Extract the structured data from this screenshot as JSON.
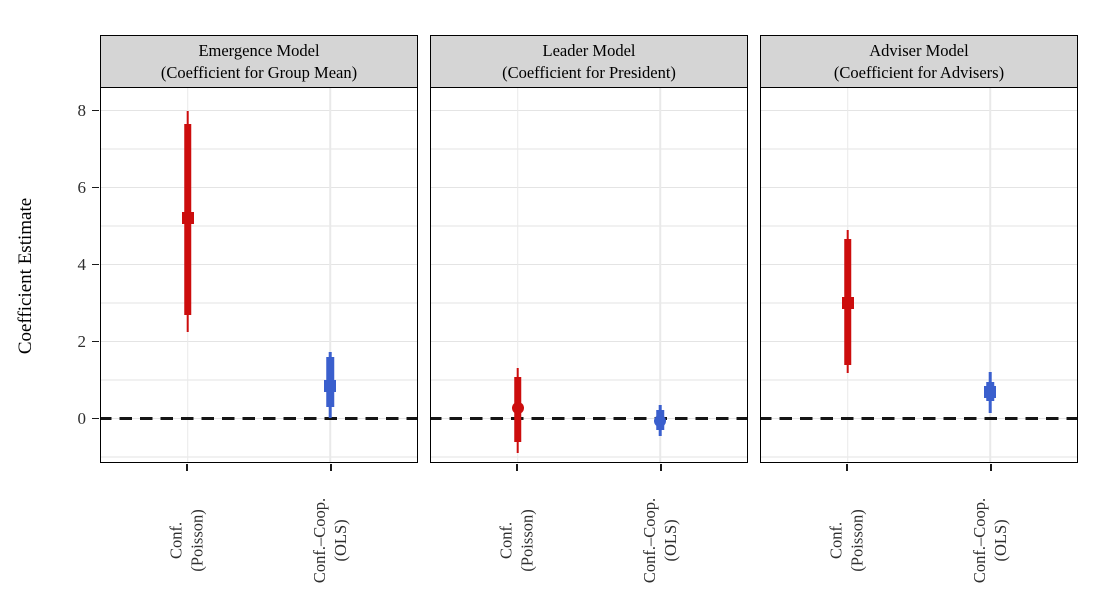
{
  "chart_data": {
    "type": "pointrange",
    "title": "",
    "ylabel": "Coefficient Estimate",
    "yticks": [
      8,
      6,
      4,
      2,
      0
    ],
    "ylim": [
      -1.17,
      8.6
    ],
    "zero_reference_line": 0,
    "grid": "major-and-minor-horizontal, vertical-at-categories",
    "legend": "none",
    "category_labels": [
      [
        "Conf.",
        "(Poisson)"
      ],
      [
        "Conf.–Coop.",
        "(OLS)"
      ]
    ],
    "facets": [
      {
        "strip_line1": "Emergence Model",
        "strip_line2": "(Coefficient for Group Mean)",
        "points": [
          {
            "category": "Conf. (Poisson)",
            "model": "Conf. (Poisson)",
            "shape": "square",
            "color_key": "poisson",
            "estimate": 5.2,
            "inner_interval": [
              2.7,
              7.65
            ],
            "outer_interval": [
              2.25,
              8.0
            ]
          },
          {
            "category": "Conf.–Coop. (OLS)",
            "model": "Conf.–Coop. (OLS)",
            "shape": "square",
            "color_key": "ols",
            "estimate": 0.85,
            "inner_interval": [
              0.3,
              1.6
            ],
            "outer_interval": [
              0.0,
              1.72
            ]
          }
        ]
      },
      {
        "strip_line1": "Leader Model",
        "strip_line2": "(Coefficient for President)",
        "points": [
          {
            "category": "Conf. (Poisson)",
            "model": "Conf. (Poisson)",
            "shape": "circle",
            "color_key": "poisson",
            "estimate": 0.28,
            "inner_interval": [
              -0.62,
              1.08
            ],
            "outer_interval": [
              -0.9,
              1.3
            ]
          },
          {
            "category": "Conf.–Coop. (OLS)",
            "model": "Conf.–Coop. (OLS)",
            "shape": "circle",
            "color_key": "ols",
            "estimate": -0.06,
            "inner_interval": [
              -0.3,
              0.21
            ],
            "outer_interval": [
              -0.45,
              0.36
            ]
          }
        ]
      },
      {
        "strip_line1": "Adviser Model",
        "strip_line2": "(Coefficient for Advisers)",
        "points": [
          {
            "category": "Conf. (Poisson)",
            "model": "Conf. (Poisson)",
            "shape": "square",
            "color_key": "poisson",
            "estimate": 3.0,
            "inner_interval": [
              1.4,
              4.65
            ],
            "outer_interval": [
              1.18,
              4.9
            ]
          },
          {
            "category": "Conf.–Coop. (OLS)",
            "model": "Conf.–Coop. (OLS)",
            "shape": "square",
            "color_key": "ols",
            "estimate": 0.7,
            "inner_interval": [
              0.45,
              0.95
            ],
            "outer_interval": [
              0.15,
              1.2
            ]
          }
        ]
      }
    ]
  },
  "styles": {
    "poisson_color": "#CC0D0D",
    "ols_color": "#3A5FCD",
    "strip_bg": "#D5D5D5",
    "panel_border": "#000000",
    "grid_major": "#E4E4E4",
    "grid_minor": "#F1F1F1",
    "grid_vertical": "#E9E9E9",
    "zero_line_color": "#151515",
    "axis_text_color": "#2e2e2e"
  }
}
